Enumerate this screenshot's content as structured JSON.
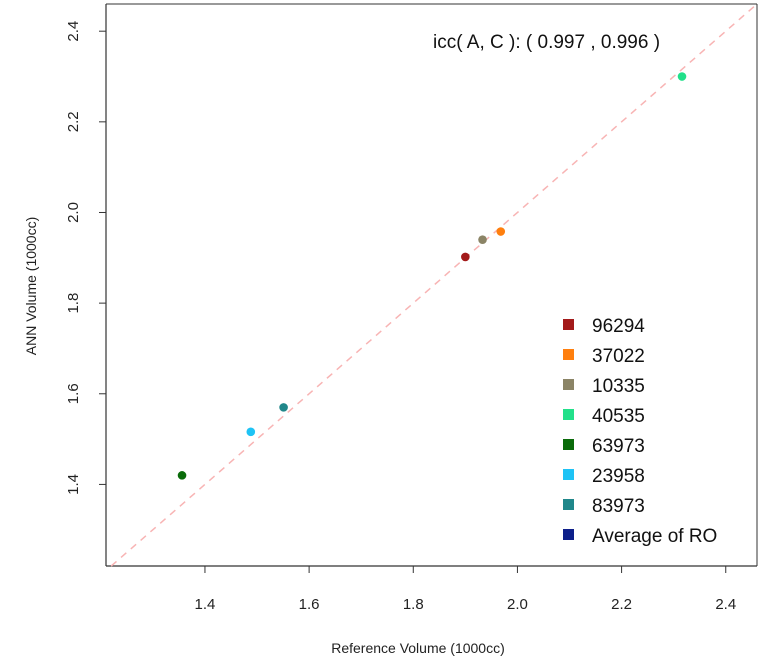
{
  "chart_data": {
    "type": "scatter",
    "title": "",
    "xlabel": "Reference Volume (1000cc)",
    "ylabel": "ANN Volume (1000cc)",
    "xlim": [
      1.21,
      2.46
    ],
    "ylim": [
      1.22,
      2.46
    ],
    "x_ticks": [
      1.4,
      1.6,
      1.8,
      2.0,
      2.2,
      2.4
    ],
    "x_tick_labels": [
      "1.4",
      "1.6",
      "1.8",
      "2.0",
      "2.2",
      "2.4"
    ],
    "y_ticks": [
      1.4,
      1.6,
      1.8,
      2.0,
      2.2,
      2.4
    ],
    "y_tick_labels": [
      "1.4",
      "1.6",
      "1.8",
      "2.0",
      "2.2",
      "2.4"
    ],
    "grid": false,
    "reference_line": {
      "type": "identity",
      "style": "dashed",
      "color": "#f8b4b4"
    },
    "annotation": "icc( A, C ): ( 0.997   ,  0.996  )",
    "legend_position": "bottom-right",
    "series": [
      {
        "name": "96294",
        "color": "#a31a1a",
        "x": 1.9,
        "y": 1.902
      },
      {
        "name": "37022",
        "color": "#ff7f0e",
        "x": 1.968,
        "y": 1.958
      },
      {
        "name": "10335",
        "color": "#8b8466",
        "x": 1.933,
        "y": 1.94
      },
      {
        "name": "40535",
        "color": "#22e08a",
        "x": 2.316,
        "y": 2.3
      },
      {
        "name": "63973",
        "color": "#0a6b0a",
        "x": 1.356,
        "y": 1.42
      },
      {
        "name": "23958",
        "color": "#1ec3f5",
        "x": 1.488,
        "y": 1.516
      },
      {
        "name": "83973",
        "color": "#20878a",
        "x": 1.551,
        "y": 1.57
      },
      {
        "name": "Average of RO",
        "color": "#0d1f8a",
        "x": null,
        "y": null
      }
    ]
  }
}
